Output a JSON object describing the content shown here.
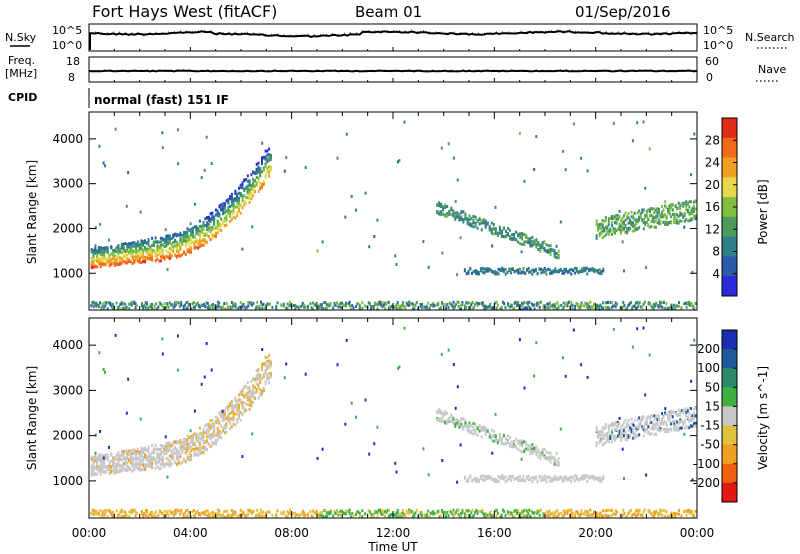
{
  "header": {
    "station": "Fort Hays West (fitACF)",
    "beam": "Beam 01",
    "date": "01/Sep/2016"
  },
  "strips": {
    "nsky_label": "N.Sky",
    "nsky_top": "10^5",
    "nsky_bottom": "10^0",
    "nsearch_label": "N.Search",
    "nsearch_top": "10^5",
    "nsearch_bottom": "10^0",
    "freq_label_1": "Freq.",
    "freq_label_2": "[MHz]",
    "freq_top": "18",
    "freq_bottom": "8",
    "nave_label": "Nave",
    "nave_top": "60",
    "nave_bottom": "0",
    "cpid_label": "CPID",
    "cpid_text": "normal (fast) 151 IF"
  },
  "colors": {
    "power_scale": [
      "#2a2ad8",
      "#2a5aa8",
      "#2f7f8a",
      "#4e9a5a",
      "#7fbf3f",
      "#e6d84a",
      "#f0a020",
      "#f06a1a",
      "#e02a1a"
    ],
    "velocity_scale": [
      "#1d2fb0",
      "#1f5a9c",
      "#2a8a6a",
      "#3fb03f",
      "#c8c8c8",
      "#e0c040",
      "#f0a020",
      "#f06010",
      "#e01a10"
    ]
  },
  "chart_data": [
    {
      "type": "heatmap",
      "name": "power",
      "xlabel": "Time UT",
      "ylabel": "Slant Range [km]",
      "x_ticks": [
        "00:00",
        "04:00",
        "08:00",
        "12:00",
        "16:00",
        "20:00",
        "00:00"
      ],
      "xlim_hours": [
        0,
        24
      ],
      "ylim_km": [
        180,
        4600
      ],
      "y_ticks": [
        1000,
        2000,
        3000,
        4000
      ],
      "colorbar": {
        "label": "Power [dB]",
        "ticks": [
          4,
          8,
          12,
          16,
          20,
          24,
          28
        ],
        "range": [
          0,
          30
        ]
      },
      "features": [
        {
          "desc": "ground scatter band",
          "t_start": 0,
          "t_end": 7.3,
          "range_km": [
            1200,
            3500
          ],
          "power_dB": [
            8,
            30
          ]
        },
        {
          "desc": "near range clutter",
          "t_start": 0,
          "t_end": 24,
          "range_km": [
            200,
            400
          ],
          "power_dB": [
            4,
            16
          ]
        },
        {
          "desc": "band descending",
          "t_start": 13.7,
          "t_end": 18.5,
          "range_km": [
            1400,
            2600
          ],
          "power_dB": [
            6,
            14
          ]
        },
        {
          "desc": "band near 1100 km",
          "t_start": 14.8,
          "t_end": 20.3,
          "range_km": [
            1000,
            1200
          ],
          "power_dB": [
            4,
            10
          ]
        },
        {
          "desc": "late band",
          "t_start": 20,
          "t_end": 24,
          "range_km": [
            1800,
            2500
          ],
          "power_dB": [
            8,
            16
          ]
        }
      ]
    },
    {
      "type": "heatmap",
      "name": "velocity",
      "xlabel": "Time UT",
      "ylabel": "Slant Range [km]",
      "x_ticks": [
        "00:00",
        "04:00",
        "08:00",
        "12:00",
        "16:00",
        "20:00",
        "00:00"
      ],
      "xlim_hours": [
        0,
        24
      ],
      "ylim_km": [
        180,
        4600
      ],
      "y_ticks": [
        1000,
        2000,
        3000,
        4000
      ],
      "colorbar": {
        "label": "Velocity [m s^-1]",
        "ticks": [
          200,
          100,
          50,
          15,
          -15,
          -50,
          -100,
          -200
        ],
        "range": [
          -250,
          250
        ]
      }
    }
  ]
}
